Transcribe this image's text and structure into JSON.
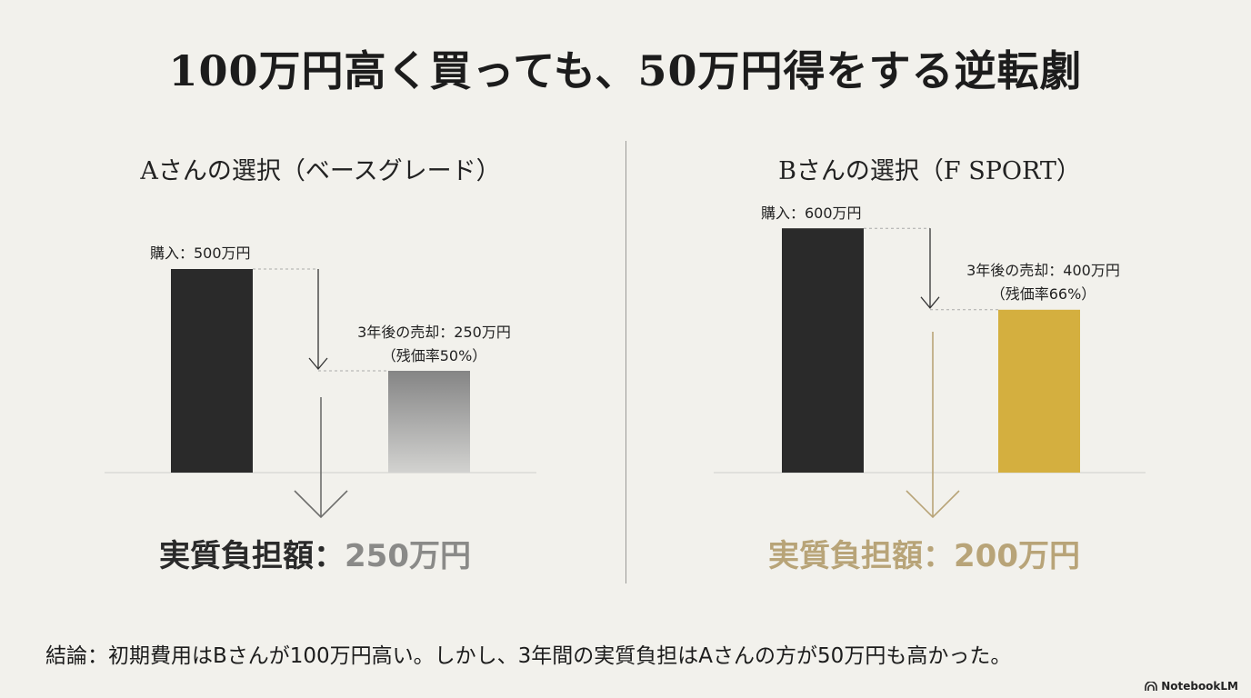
{
  "title": "100万円高く買っても、50万円得をする逆転劇",
  "colors": {
    "background": "#f2f1ec",
    "dark_bar": "#2a2a2a",
    "gray_bar_top": "#858585",
    "gray_bar_bottom": "#d2d2d0",
    "gold_bar": "#d4af3f",
    "gold_text": "#b8a478",
    "gray_text": "#8a8a88"
  },
  "chart_data": [
    {
      "type": "bar",
      "title": "Aさんの選択（ベースグレード）",
      "categories": [
        "購入",
        "3年後の売却"
      ],
      "values": [
        500,
        250
      ],
      "unit": "万円",
      "labels": [
        "購入：500万円",
        "3年後の売却：250万円",
        "（残価率50%）"
      ],
      "result_label": "実質負担額：",
      "result_value": "250万円",
      "grid": false
    },
    {
      "type": "bar",
      "title": "Bさんの選択（F SPORT）",
      "categories": [
        "購入",
        "3年後の売却"
      ],
      "values": [
        600,
        400
      ],
      "unit": "万円",
      "labels": [
        "購入：600万円",
        "3年後の売却：400万円",
        "（残価率66%）"
      ],
      "result_label": "実質負担額：",
      "result_value": "200万円",
      "grid": false
    }
  ],
  "conclusion": "結論：初期費用はBさんが100万円高い。しかし、3年間の実質負担はAさんの方が50万円も高かった。",
  "logo": {
    "text": "NotebookLM",
    "icon": "notebooklm-logo-icon"
  }
}
